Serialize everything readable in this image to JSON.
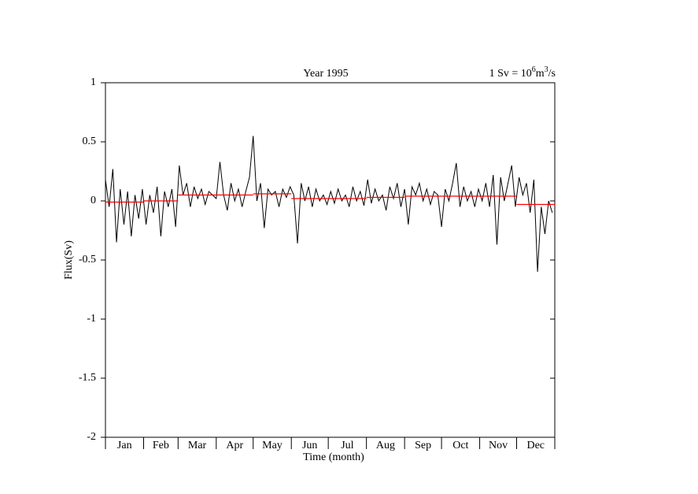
{
  "chart_data": {
    "type": "line",
    "title": "Year 1995",
    "annotation": [
      "1 Sv = 10",
      "6",
      "m",
      "3",
      "/s"
    ],
    "xlabel": "Time (month)",
    "ylabel": "Flux(Sv)",
    "months": [
      "Jan",
      "Feb",
      "Mar",
      "Apr",
      "May",
      "Jun",
      "Jul",
      "Aug",
      "Sep",
      "Oct",
      "Nov",
      "Dec"
    ],
    "xlim": [
      0,
      365
    ],
    "xticks": [
      0,
      31,
      59,
      90,
      120,
      151,
      181,
      212,
      243,
      273,
      304,
      334,
      365
    ],
    "ylim": [
      -2,
      1
    ],
    "yticks": [
      1,
      0.5,
      0,
      -0.5,
      -1,
      -1.5,
      -2
    ],
    "series": [
      {
        "color": "#000000",
        "x": [
          0,
          3,
          6,
          9,
          12,
          15,
          18,
          21,
          24,
          27,
          30,
          33,
          36,
          39,
          42,
          45,
          48,
          51,
          54,
          57,
          60,
          63,
          66,
          69,
          72,
          75,
          78,
          81,
          84,
          87,
          90,
          93,
          96,
          99,
          102,
          105,
          108,
          111,
          114,
          117,
          120,
          123,
          126,
          129,
          132,
          135,
          138,
          141,
          144,
          147,
          150,
          153,
          156,
          159,
          162,
          165,
          168,
          171,
          174,
          177,
          180,
          183,
          186,
          189,
          192,
          195,
          198,
          201,
          204,
          207,
          210,
          213,
          216,
          219,
          222,
          225,
          228,
          231,
          234,
          237,
          240,
          243,
          246,
          249,
          252,
          255,
          258,
          261,
          264,
          267,
          270,
          273,
          276,
          279,
          282,
          285,
          288,
          291,
          294,
          297,
          300,
          303,
          306,
          309,
          312,
          315,
          318,
          321,
          324,
          327,
          330,
          333,
          336,
          339,
          342,
          345,
          348,
          351,
          354,
          357,
          360,
          363
        ],
        "values": [
          0.18,
          -0.05,
          0.27,
          -0.35,
          0.1,
          -0.2,
          0.08,
          -0.3,
          0.05,
          -0.15,
          0.1,
          -0.2,
          0.05,
          -0.1,
          0.12,
          -0.3,
          0.08,
          -0.05,
          0.1,
          -0.22,
          0.3,
          0.05,
          0.15,
          -0.05,
          0.12,
          0.02,
          0.1,
          -0.03,
          0.08,
          0.05,
          0.02,
          0.33,
          0.05,
          -0.08,
          0.15,
          0.0,
          0.1,
          -0.05,
          0.08,
          0.2,
          0.55,
          0.0,
          0.15,
          -0.23,
          0.1,
          0.05,
          0.08,
          -0.05,
          0.1,
          0.03,
          0.12,
          0.05,
          -0.36,
          0.15,
          0.0,
          0.12,
          -0.05,
          0.1,
          0.0,
          0.05,
          -0.03,
          0.08,
          -0.02,
          0.1,
          0.0,
          0.05,
          -0.05,
          0.12,
          0.0,
          0.08,
          -0.04,
          0.18,
          -0.02,
          0.1,
          0.0,
          0.05,
          -0.08,
          0.12,
          0.02,
          0.15,
          -0.05,
          0.1,
          -0.2,
          0.12,
          0.05,
          0.15,
          0.0,
          0.1,
          -0.03,
          0.08,
          0.05,
          -0.22,
          0.1,
          0.0,
          0.15,
          0.32,
          -0.05,
          0.12,
          0.0,
          0.08,
          -0.05,
          0.1,
          0.0,
          0.15,
          -0.05,
          0.22,
          -0.37,
          0.2,
          0.0,
          0.15,
          0.3,
          -0.05,
          0.2,
          0.05,
          0.15,
          -0.1,
          0.18,
          -0.6,
          -0.05,
          -0.28,
          0.0,
          -0.1
        ]
      }
    ],
    "monthly_means": {
      "color": "#ff0000",
      "values": [
        -0.01,
        0.0,
        0.05,
        0.05,
        0.06,
        0.02,
        0.02,
        0.03,
        0.04,
        0.04,
        0.04,
        -0.03
      ]
    }
  }
}
